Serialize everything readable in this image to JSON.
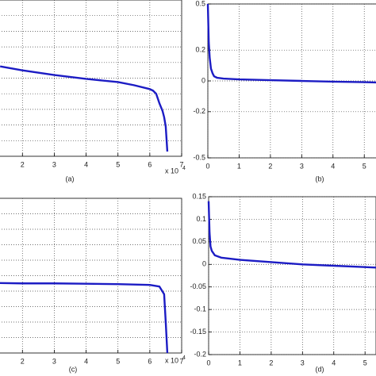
{
  "chart_data": [
    {
      "type": "line",
      "label": "(a)",
      "x_scale_label": {
        "base": "x 10",
        "exponent": "4"
      },
      "x": [
        1.3,
        2,
        3,
        4,
        5,
        5.5,
        6,
        6.1,
        6.2,
        6.3,
        6.4,
        6.45,
        6.5,
        6.55
      ],
      "series": [
        {
          "color": "#1c1cc4",
          "values": [
            5.75,
            5.5,
            5.2,
            4.95,
            4.75,
            4.55,
            4.3,
            4.2,
            4.0,
            3.4,
            2.9,
            2.5,
            1.9,
            0.3
          ]
        }
      ],
      "xlim": [
        0,
        7
      ],
      "xticks": [
        2,
        3,
        4,
        5,
        6,
        7
      ],
      "ylim": [
        0,
        10
      ],
      "yticks": [
        1,
        2,
        3,
        4,
        5,
        6,
        7,
        8,
        9
      ],
      "ytick_labels": false,
      "grid": true
    },
    {
      "type": "line",
      "label": "(b)",
      "x": [
        0,
        0.03,
        0.06,
        0.1,
        0.15,
        0.2,
        0.3,
        0.5,
        1,
        2,
        3,
        4,
        5,
        5.4
      ],
      "series": [
        {
          "color": "#1c1cc4",
          "values": [
            0.5,
            0.25,
            0.15,
            0.08,
            0.05,
            0.03,
            0.02,
            0.015,
            0.01,
            0.005,
            0,
            -0.005,
            -0.008,
            -0.01
          ]
        }
      ],
      "xlim": [
        0,
        5.4
      ],
      "xticks": [
        0,
        1,
        2,
        3,
        4,
        5
      ],
      "ylim": [
        -0.5,
        0.5
      ],
      "yticks": [
        -0.5,
        -0.2,
        0,
        0.2,
        0.5
      ],
      "grid": true
    },
    {
      "type": "line",
      "label": "(c)",
      "x_scale_label": {
        "base": "x 10",
        "exponent": "4"
      },
      "x": [
        0.5,
        2,
        3,
        4,
        5,
        6,
        6.3,
        6.45,
        6.5,
        6.55
      ],
      "series": [
        {
          "color": "#1c1cc4",
          "values": [
            4.55,
            4.5,
            4.5,
            4.48,
            4.45,
            4.4,
            4.3,
            3.8,
            2,
            0
          ]
        }
      ],
      "xlim": [
        0,
        7
      ],
      "xticks": [
        2,
        3,
        4,
        5,
        6,
        7
      ],
      "ylim": [
        0,
        10
      ],
      "yticks": [
        1,
        2,
        3,
        4,
        5,
        6,
        7,
        8,
        9
      ],
      "ytick_labels": false,
      "grid": true
    },
    {
      "type": "line",
      "label": "(d)",
      "x": [
        0,
        0.03,
        0.06,
        0.1,
        0.2,
        0.4,
        1,
        2,
        3,
        4,
        5,
        5.35
      ],
      "series": [
        {
          "color": "#1c1cc4",
          "values": [
            0.14,
            0.07,
            0.04,
            0.03,
            0.02,
            0.015,
            0.01,
            0.005,
            0,
            -0.003,
            -0.006,
            -0.007
          ]
        }
      ],
      "xlim": [
        0,
        5.35
      ],
      "xticks": [
        0,
        1,
        2,
        3,
        4,
        5
      ],
      "ylim": [
        -0.2,
        0.15
      ],
      "yticks": [
        -0.2,
        -0.15,
        -0.1,
        -0.05,
        0,
        0.05,
        0.1,
        0.15
      ],
      "grid": true
    }
  ]
}
